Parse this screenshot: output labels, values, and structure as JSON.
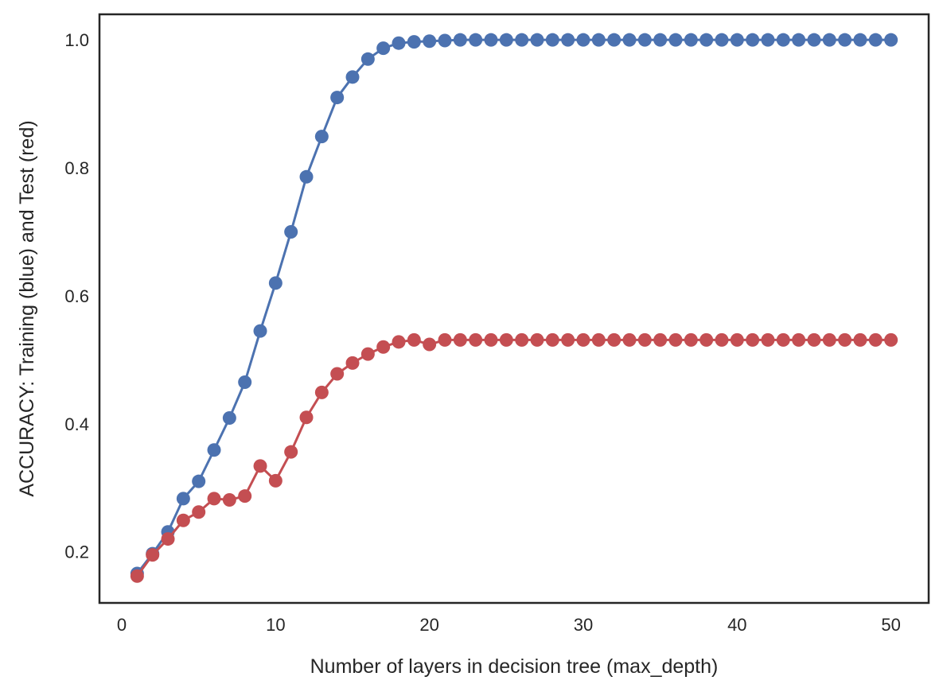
{
  "chart_data": {
    "type": "line",
    "title": "",
    "xlabel": "Number of layers in decision tree (max_depth)",
    "ylabel": "ACCURACY: Training (blue) and Test (red)",
    "xlim": [
      -1.45,
      52.45
    ],
    "ylim": [
      0.12,
      1.04
    ],
    "xticks": [
      0,
      10,
      20,
      30,
      40,
      50
    ],
    "yticks": [
      0.2,
      0.4,
      0.6,
      0.8,
      1.0
    ],
    "xtick_labels": [
      "0",
      "10",
      "20",
      "30",
      "40",
      "50"
    ],
    "ytick_labels": [
      "0.2",
      "0.4",
      "0.6",
      "0.8",
      "1.0"
    ],
    "grid": false,
    "x": [
      1,
      2,
      3,
      4,
      5,
      6,
      7,
      8,
      9,
      10,
      11,
      12,
      13,
      14,
      15,
      16,
      17,
      18,
      19,
      20,
      21,
      22,
      23,
      24,
      25,
      26,
      27,
      28,
      29,
      30,
      31,
      32,
      33,
      34,
      35,
      36,
      37,
      38,
      39,
      40,
      41,
      42,
      43,
      44,
      45,
      46,
      47,
      48,
      49,
      50
    ],
    "series": [
      {
        "color": "#4c72b0",
        "marker": "circle",
        "values": [
          0.166,
          0.197,
          0.231,
          0.283,
          0.31,
          0.359,
          0.409,
          0.465,
          0.545,
          0.62,
          0.7,
          0.786,
          0.849,
          0.91,
          0.942,
          0.97,
          0.987,
          0.995,
          0.997,
          0.998,
          0.999,
          1.0,
          1.0,
          1.0,
          1.0,
          1.0,
          1.0,
          1.0,
          1.0,
          1.0,
          1.0,
          1.0,
          1.0,
          1.0,
          1.0,
          1.0,
          1.0,
          1.0,
          1.0,
          1.0,
          1.0,
          1.0,
          1.0,
          1.0,
          1.0,
          1.0,
          1.0,
          1.0,
          1.0,
          1.0
        ]
      },
      {
        "color": "#c44e52",
        "marker": "circle",
        "values": [
          0.162,
          0.195,
          0.22,
          0.249,
          0.262,
          0.283,
          0.281,
          0.287,
          0.334,
          0.311,
          0.356,
          0.41,
          0.449,
          0.478,
          0.495,
          0.509,
          0.52,
          0.528,
          0.531,
          0.524,
          0.531,
          0.531,
          0.531,
          0.531,
          0.531,
          0.531,
          0.531,
          0.531,
          0.531,
          0.531,
          0.531,
          0.531,
          0.531,
          0.531,
          0.531,
          0.531,
          0.531,
          0.531,
          0.531,
          0.531,
          0.531,
          0.531,
          0.531,
          0.531,
          0.531,
          0.531,
          0.531,
          0.531,
          0.531,
          0.531
        ]
      }
    ]
  }
}
